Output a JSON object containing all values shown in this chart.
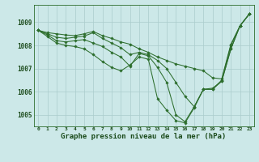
{
  "background_color": "#cce8e8",
  "grid_color": "#aacccc",
  "line_color": "#2d6e2d",
  "title": "Graphe pression niveau de la mer (hPa)",
  "ylim": [
    1004.5,
    1009.75
  ],
  "yticks": [
    1005,
    1006,
    1007,
    1008,
    1009
  ],
  "xticks": [
    0,
    1,
    2,
    3,
    4,
    5,
    6,
    7,
    8,
    9,
    10,
    11,
    12,
    13,
    14,
    15,
    16,
    17,
    18,
    19,
    20,
    21,
    22,
    23
  ],
  "series": [
    [
      1008.65,
      1008.55,
      1008.5,
      1008.45,
      1008.42,
      1008.5,
      1008.6,
      1008.42,
      1008.3,
      1008.15,
      1008.05,
      1007.85,
      1007.7,
      1007.5,
      1007.35,
      1007.2,
      1007.1,
      1007.0,
      1006.9,
      1006.6,
      1006.55,
      1008.05,
      1008.85,
      1009.35
    ],
    [
      1008.65,
      1008.5,
      1008.35,
      1008.3,
      1008.35,
      1008.4,
      1008.55,
      1008.3,
      1008.1,
      1007.9,
      1007.6,
      1007.7,
      1007.6,
      1007.35,
      1007.0,
      1006.4,
      1005.8,
      1005.35,
      1006.1,
      1006.1,
      1006.5,
      1008.0,
      1008.85,
      1009.35
    ],
    [
      1008.65,
      1008.45,
      1008.2,
      1008.15,
      1008.2,
      1008.25,
      1008.1,
      1007.95,
      1007.7,
      1007.5,
      1007.1,
      1007.65,
      1007.55,
      1007.05,
      1006.4,
      1005.0,
      1004.7,
      1005.35,
      1006.1,
      1006.15,
      1006.45,
      1007.85,
      1008.85,
      1009.35
    ],
    [
      1008.65,
      1008.38,
      1008.1,
      1008.0,
      1007.95,
      1007.85,
      1007.6,
      1007.3,
      1007.05,
      1006.9,
      1007.15,
      1007.5,
      1007.4,
      1005.7,
      1005.2,
      1004.75,
      1004.65,
      1005.3,
      1006.1,
      1006.1,
      1006.45,
      1007.85,
      1008.85,
      1009.35
    ]
  ]
}
